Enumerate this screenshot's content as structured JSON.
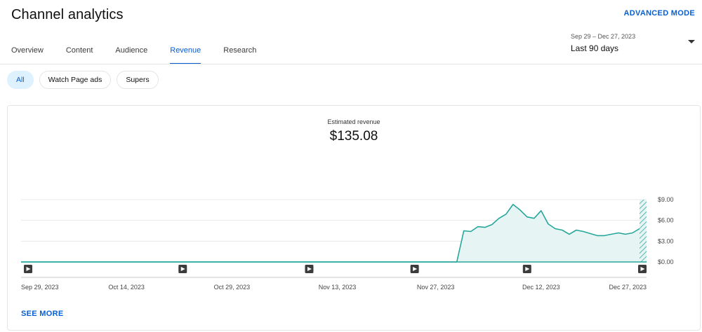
{
  "header": {
    "title": "Channel analytics",
    "advanced_mode_label": "ADVANCED MODE"
  },
  "tabs": [
    {
      "label": "Overview",
      "active": false
    },
    {
      "label": "Content",
      "active": false
    },
    {
      "label": "Audience",
      "active": false
    },
    {
      "label": "Revenue",
      "active": true
    },
    {
      "label": "Research",
      "active": false
    }
  ],
  "date_range": {
    "range_text": "Sep 29 – Dec 27, 2023",
    "preset_label": "Last 90 days"
  },
  "chips": [
    {
      "label": "All",
      "active": true
    },
    {
      "label": "Watch Page ads",
      "active": false
    },
    {
      "label": "Supers",
      "active": false
    }
  ],
  "metric": {
    "label": "Estimated revenue",
    "value": "$135.08"
  },
  "see_more_label": "SEE MORE",
  "colors": {
    "accent": "#065fd4",
    "series_line": "#26a69a",
    "series_fill": "#e6f5f3"
  },
  "chart_data": {
    "type": "area",
    "ylabel": "",
    "xlabel": "",
    "ylim": [
      0,
      9
    ],
    "yticks": [
      {
        "value": 0,
        "label": "$0.00"
      },
      {
        "value": 3,
        "label": "$3.00"
      },
      {
        "value": 6,
        "label": "$6.00"
      },
      {
        "value": 9,
        "label": "$9.00"
      }
    ],
    "xlim": [
      "2023-09-29",
      "2023-12-27"
    ],
    "xticks": [
      {
        "date": "2023-09-29",
        "label": "Sep 29, 2023"
      },
      {
        "date": "2023-10-14",
        "label": "Oct 14, 2023"
      },
      {
        "date": "2023-10-29",
        "label": "Oct 29, 2023"
      },
      {
        "date": "2023-11-13",
        "label": "Nov 13, 2023"
      },
      {
        "date": "2023-11-27",
        "label": "Nov 27, 2023"
      },
      {
        "date": "2023-12-12",
        "label": "Dec 12, 2023"
      },
      {
        "date": "2023-12-27",
        "label": "Dec 27, 2023"
      }
    ],
    "video_markers": [
      "2023-09-30",
      "2023-10-22",
      "2023-11-09",
      "2023-11-24",
      "2023-12-10",
      "2023-12-27"
    ],
    "partial_data_from": "2023-12-27",
    "grid": true,
    "series": [
      {
        "points": [
          [
            "2023-09-29",
            0
          ],
          [
            "2023-11-30",
            0
          ],
          [
            "2023-12-01",
            4.5
          ],
          [
            "2023-12-02",
            4.4
          ],
          [
            "2023-12-03",
            5.1
          ],
          [
            "2023-12-04",
            5.0
          ],
          [
            "2023-12-05",
            5.4
          ],
          [
            "2023-12-06",
            6.3
          ],
          [
            "2023-12-07",
            6.9
          ],
          [
            "2023-12-08",
            8.3
          ],
          [
            "2023-12-09",
            7.5
          ],
          [
            "2023-12-10",
            6.5
          ],
          [
            "2023-12-11",
            6.3
          ],
          [
            "2023-12-12",
            7.4
          ],
          [
            "2023-12-13",
            5.5
          ],
          [
            "2023-12-14",
            4.8
          ],
          [
            "2023-12-15",
            4.6
          ],
          [
            "2023-12-16",
            4.0
          ],
          [
            "2023-12-17",
            4.6
          ],
          [
            "2023-12-18",
            4.4
          ],
          [
            "2023-12-19",
            4.1
          ],
          [
            "2023-12-20",
            3.8
          ],
          [
            "2023-12-21",
            3.8
          ],
          [
            "2023-12-22",
            4.0
          ],
          [
            "2023-12-23",
            4.2
          ],
          [
            "2023-12-24",
            4.0
          ],
          [
            "2023-12-25",
            4.2
          ],
          [
            "2023-12-26",
            4.8
          ]
        ]
      }
    ]
  }
}
